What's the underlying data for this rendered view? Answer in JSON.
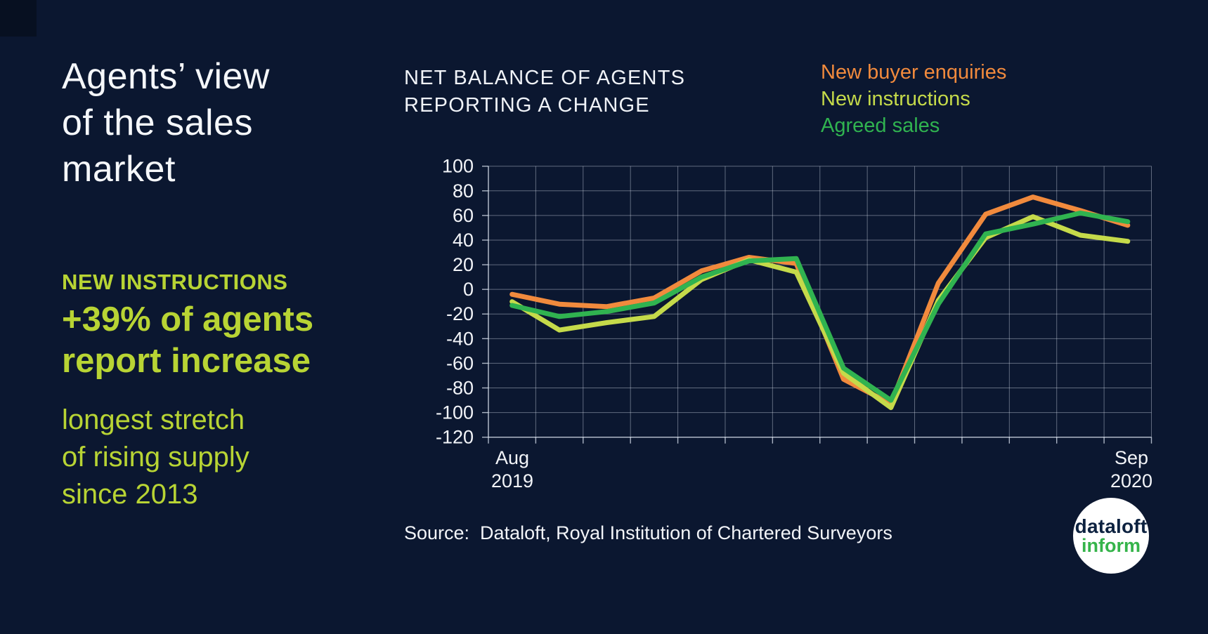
{
  "page": {
    "background_color": "#0b1730",
    "corner_square_color": "#071021",
    "accent_color": "#b8d434"
  },
  "left_panel": {
    "title": "Agents’ view\nof the sales\nmarket",
    "highlight_label": "NEW INSTRUCTIONS",
    "highlight_stat": "+39% of agents\nreport increase",
    "highlight_note": "longest stretch\nof rising supply\nsince 2013"
  },
  "chart": {
    "title": "NET BALANCE OF AGENTS\nREPORTING A CHANGE",
    "source": "Source:  Dataloft, Royal Institution of Chartered Surveyors",
    "x_label_start": "Aug\n2019",
    "x_label_end": "Sep\n2020",
    "gridline_color": "rgba(226,233,245,0.40)",
    "axis_color": "rgba(226,233,245,0.75)",
    "tick_label_color": "#f2f4f8"
  },
  "chart_data": {
    "type": "line",
    "title": "NET BALANCE OF AGENTS REPORTING A CHANGE",
    "x": [
      "Aug 2019",
      "Sep 2019",
      "Oct 2019",
      "Nov 2019",
      "Dec 2019",
      "Jan 2020",
      "Feb 2020",
      "Mar 2020",
      "Apr 2020",
      "May 2020",
      "Jun 2020",
      "Jul 2020",
      "Aug 2020",
      "Sep 2020"
    ],
    "shown_x_tick_labels": [
      "Aug 2019",
      "Sep 2020"
    ],
    "ylim": [
      -120,
      100
    ],
    "ytick_step": 20,
    "yticks": [
      100,
      80,
      60,
      40,
      20,
      0,
      -20,
      -40,
      -60,
      -80,
      -100,
      -120
    ],
    "grid": true,
    "legend_position": "top-right",
    "line_width": 7,
    "series": [
      {
        "name": "New buyer enquiries",
        "color": "#f18a3d",
        "values": [
          -4,
          -12,
          -14,
          -7,
          15,
          26,
          21,
          -73,
          -93,
          5,
          61,
          75,
          64,
          52
        ]
      },
      {
        "name": "New instructions",
        "color": "#c5da4a",
        "values": [
          -10,
          -33,
          -27,
          -22,
          8,
          24,
          14,
          -68,
          -96,
          -9,
          42,
          59,
          44,
          39
        ]
      },
      {
        "name": "Agreed sales",
        "color": "#30b350",
        "values": [
          -13,
          -22,
          -18,
          -11,
          10,
          23,
          25,
          -64,
          -90,
          -12,
          45,
          53,
          62,
          55
        ]
      }
    ]
  },
  "logo": {
    "line1": "dataloft",
    "line2": "inform",
    "line1_color": "#0d2240",
    "line2_color": "#35b44a"
  }
}
